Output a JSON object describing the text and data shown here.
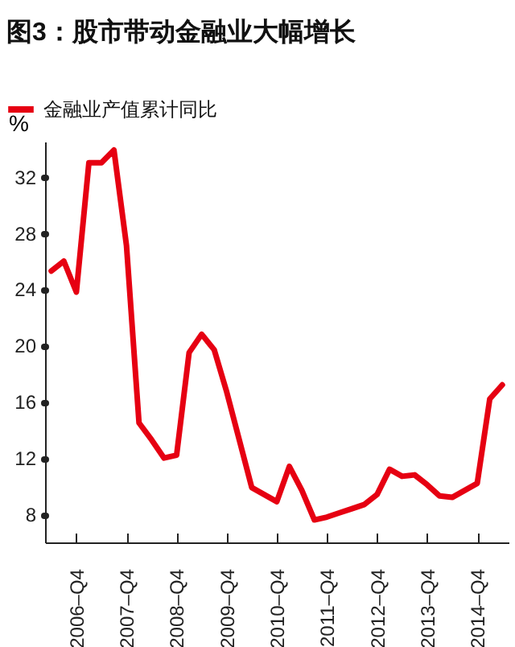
{
  "chart_data": {
    "type": "line",
    "title": "图3：股市带动金融业大幅增长",
    "ylabel": "%",
    "categories": [
      null,
      null,
      "2006–Q4",
      null,
      null,
      null,
      "2007–Q4",
      null,
      null,
      null,
      "2008–Q4",
      null,
      null,
      null,
      "2009–Q4",
      null,
      null,
      null,
      "2010–Q4",
      null,
      null,
      null,
      "2011–Q4",
      null,
      null,
      null,
      "2012–Q4",
      null,
      null,
      null,
      "2013–Q4",
      null,
      null,
      null,
      "2014–Q4",
      null,
      null
    ],
    "series": [
      {
        "name": "金融业产值累计同比",
        "color": "#e60012",
        "values": [
          25.3,
          26.0,
          23.8,
          33.0,
          33.0,
          33.9,
          27.1,
          14.5,
          13.3,
          12.0,
          12.2,
          19.5,
          20.8,
          19.7,
          16.7,
          13.3,
          9.9,
          9.4,
          8.9,
          11.4,
          9.7,
          7.6,
          7.8,
          8.1,
          8.4,
          8.7,
          9.4,
          11.2,
          10.7,
          10.8,
          10.1,
          9.3,
          9.2,
          9.7,
          10.2,
          16.2,
          17.2
        ]
      }
    ],
    "ylim": [
      6,
      34.5
    ],
    "yticks": [
      8,
      12,
      16,
      20,
      24,
      28,
      32
    ],
    "legend": "top left",
    "grid": false,
    "marker": "none",
    "line_style": "solid"
  }
}
